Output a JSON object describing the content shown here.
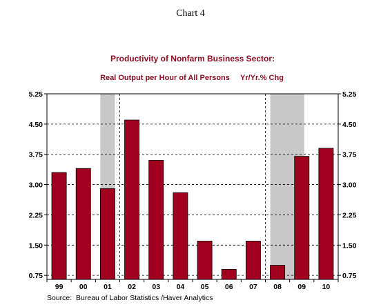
{
  "header_label": "Chart 4",
  "source": "Source:  Bureau of Labor Statistics /Haver Analytics",
  "colors": {
    "bar": "#a0001e",
    "shade": "#c8c8c8",
    "title": "#8b0a1f"
  },
  "chart_data": {
    "type": "bar",
    "title": "Productivity of Nonfarm Business Sector:",
    "subtitle": "Real Output per Hour of All Persons     Yr/Yr.% Chg",
    "categories": [
      "99",
      "00",
      "01",
      "02",
      "03",
      "04",
      "05",
      "06",
      "07",
      "08",
      "09",
      "10"
    ],
    "values": [
      3.3,
      3.4,
      2.9,
      4.6,
      3.6,
      2.8,
      1.6,
      0.9,
      1.6,
      1.0,
      3.7,
      3.9
    ],
    "ylim": [
      0.65,
      5.25
    ],
    "yticks": [
      "0.75",
      "1.50",
      "2.25",
      "3.00",
      "3.75",
      "4.50",
      "5.25"
    ],
    "recession_shading": [
      {
        "from_index": 2,
        "to_index": 2
      },
      {
        "from_index": 9,
        "to_index": 9.8
      }
    ],
    "grid": true,
    "legend": "none"
  }
}
